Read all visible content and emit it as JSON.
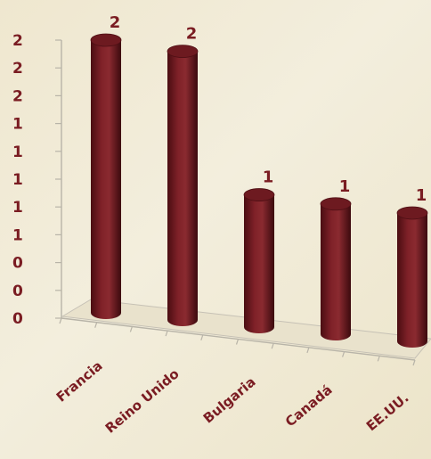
{
  "chart_data": {
    "type": "bar",
    "style": "3d-cylinder",
    "categories": [
      "Francia",
      "Reino Unido",
      "Bulgaria",
      "Canadá",
      "EE.UU."
    ],
    "values": [
      2,
      2,
      1,
      1,
      1
    ],
    "data_labels": [
      "2",
      "2",
      "1",
      "1",
      "1"
    ],
    "y_tick_labels": [
      "0",
      "0",
      "0",
      "1",
      "1",
      "1",
      "1",
      "1",
      "2",
      "2",
      "2"
    ],
    "ylim": [
      0,
      2
    ],
    "title": "",
    "xlabel": "",
    "ylabel": "",
    "legend": "none",
    "grid": false,
    "bar_color": "#7a1c22"
  }
}
